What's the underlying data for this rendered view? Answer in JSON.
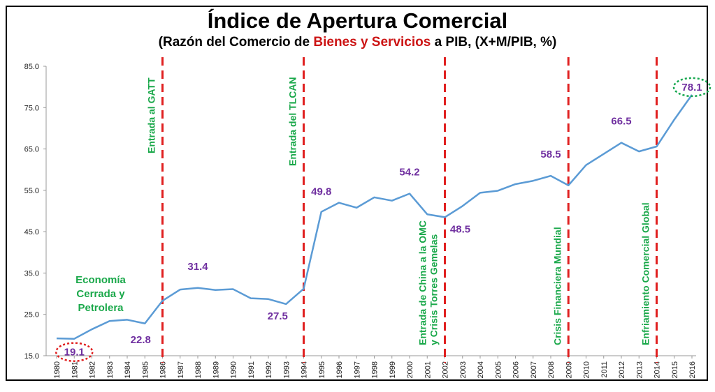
{
  "chart_data": {
    "type": "line",
    "title": "Índice de Apertura Comercial",
    "subtitle_parts": [
      "(Razón del Comercio de ",
      "Bienes y Servicios",
      " a PIB, (X+M/PIB, %)"
    ],
    "xlabel": "",
    "ylabel": "",
    "ylim": [
      15.0,
      85.0
    ],
    "yticks": [
      "15.0",
      "25.0",
      "35.0",
      "45.0",
      "55.0",
      "65.0",
      "75.0",
      "85.0"
    ],
    "x": [
      "1980",
      "1981",
      "1982",
      "1983",
      "1984",
      "1985",
      "1986",
      "1987",
      "1988",
      "1989",
      "1990",
      "1991",
      "1992",
      "1993",
      "1994",
      "1995",
      "1996",
      "1997",
      "1998",
      "1999",
      "2000",
      "2001",
      "2002",
      "2003",
      "2004",
      "2005",
      "2006",
      "2007",
      "2008",
      "2009",
      "2010",
      "2011",
      "2012",
      "2013",
      "2014",
      "2015",
      "2016"
    ],
    "series": [
      {
        "name": "",
        "color": "#5b9bd5",
        "values": [
          19.2,
          19.1,
          21.4,
          23.4,
          23.7,
          22.8,
          28.3,
          31.0,
          31.4,
          30.9,
          31.1,
          28.9,
          28.7,
          27.5,
          31.2,
          49.8,
          52.0,
          50.8,
          53.3,
          52.5,
          54.2,
          49.2,
          48.5,
          51.2,
          54.4,
          54.9,
          56.5,
          57.3,
          58.5,
          56.2,
          61.1,
          63.8,
          66.5,
          64.4,
          65.6,
          72.1,
          78.1
        ]
      }
    ],
    "data_labels": [
      {
        "year": "1981",
        "text": "19.1",
        "circled": true,
        "circle_color": "#e02020"
      },
      {
        "year": "1985",
        "text": "22.8",
        "circled": false
      },
      {
        "year": "1988",
        "text": "31.4",
        "circled": false
      },
      {
        "year": "1993",
        "text": "27.5",
        "circled": false
      },
      {
        "year": "1995",
        "text": "49.8",
        "circled": false
      },
      {
        "year": "2000",
        "text": "54.2",
        "circled": false
      },
      {
        "year": "2002",
        "text": "48.5",
        "circled": false
      },
      {
        "year": "2008",
        "text": "58.5",
        "circled": false
      },
      {
        "year": "2012",
        "text": "66.5",
        "circled": false
      },
      {
        "year": "2016",
        "text": "78.1",
        "circled": true,
        "circle_color": "#18a850"
      }
    ],
    "events": [
      {
        "year": "1986",
        "text": "Entrada al GATT"
      },
      {
        "year": "1994",
        "text": "Entrada del TLCAN"
      },
      {
        "year": "2002",
        "text": "Entrada de China a la OMC\ny  Crisis Torres Gemelas"
      },
      {
        "year": "2009",
        "text": "Crisis Financiera Mundial"
      },
      {
        "year": "2014",
        "text": "Enfriamiento Comercial Global"
      }
    ],
    "annotation": "Economía\nCerrada y\nPetrolera",
    "grid": false,
    "legend": "none"
  },
  "colors": {
    "line": "#5b9bd5",
    "event_line": "#e02020",
    "event_text": "#1aa84a",
    "value_label": "#7030a0",
    "subtitle_highlight": "#cc1414"
  }
}
